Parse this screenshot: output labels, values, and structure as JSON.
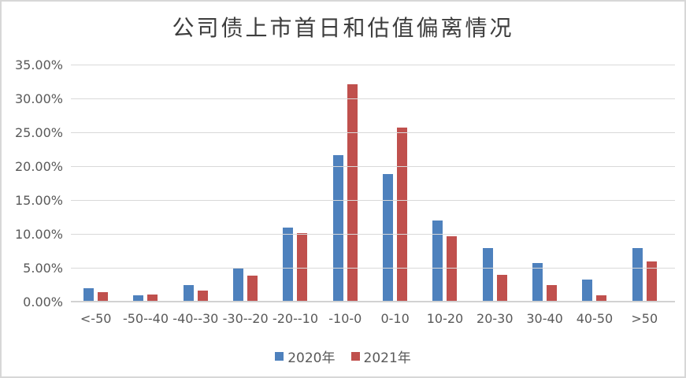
{
  "chart_data": {
    "type": "bar",
    "title": "公司债上市首日和估值偏离情况",
    "categories": [
      "<-50",
      "-50--40",
      "-40--30",
      "-30--20",
      "-20--10",
      "-10-0",
      "0-10",
      "10-20",
      "20-30",
      "30-40",
      "40-50",
      ">50"
    ],
    "series": [
      {
        "name": "2020年",
        "color": "#4E81BD",
        "values": [
          2.1,
          1.0,
          2.6,
          5.1,
          11.1,
          21.7,
          19.0,
          12.1,
          8.0,
          5.8,
          3.4,
          8.0
        ]
      },
      {
        "name": "2021年",
        "color": "#C0504D",
        "values": [
          1.5,
          1.2,
          1.7,
          3.9,
          10.2,
          32.2,
          25.8,
          9.8,
          4.1,
          2.6,
          1.0,
          6.0
        ]
      }
    ],
    "xlabel": "",
    "ylabel": "",
    "ylim": [
      0,
      35
    ],
    "ytick_step": 5,
    "ytick_labels": [
      "0.00%",
      "5.00%",
      "10.00%",
      "15.00%",
      "20.00%",
      "25.00%",
      "30.00%",
      "35.00%"
    ],
    "grid": true,
    "legend_position": "bottom",
    "gridline_color": "#d9d9d9",
    "label_color": "#595959",
    "title_color": "#3d3d3d"
  }
}
